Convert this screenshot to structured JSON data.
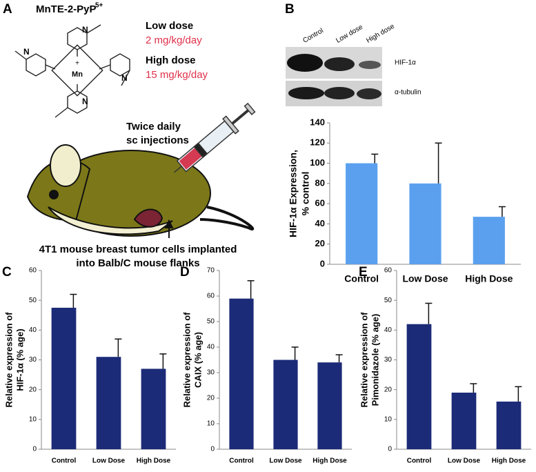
{
  "panel_labels": [
    "A",
    "B",
    "C",
    "D",
    "E"
  ],
  "panel_a": {
    "compound": "MnTE-2-PyP",
    "compound_charge": "5+",
    "metal": "Mn",
    "nitrogen": "N",
    "charge": "+",
    "low_dose_label": "Low dose",
    "low_dose_value": "2 mg/kg/day",
    "high_dose_label": "High dose",
    "high_dose_value": "15 mg/kg/day",
    "injection_text": [
      "Twice daily",
      "sc injections"
    ],
    "caption": [
      "4T1 mouse breast tumor cells implanted",
      "into Balb/C mouse flanks"
    ]
  },
  "blot": {
    "lanes": [
      "Control",
      "Low dose",
      "High dose"
    ],
    "rows": [
      "HIF-1α",
      "α-tubulin"
    ]
  },
  "chart_data": [
    {
      "type": "bar",
      "ylabel": [
        "HIF-1α Expression,",
        "% control"
      ],
      "categories": [
        "Control",
        "Low Dose",
        "High Dose"
      ],
      "values": [
        100,
        80,
        47
      ],
      "errors": [
        9,
        40,
        10
      ],
      "color": "#5aa0ef",
      "ylim": [
        0,
        140
      ],
      "yticks": [
        0,
        20,
        40,
        60,
        80,
        100,
        120,
        140
      ]
    },
    {
      "type": "bar",
      "ylabel": [
        "Relative expression of",
        "HIF-1α (% age)"
      ],
      "categories": [
        "Control",
        "Low Dose",
        "High Dose"
      ],
      "values": [
        47.5,
        31,
        27
      ],
      "errors": [
        4.5,
        6,
        5
      ],
      "color": "#1c2b78",
      "ylim": [
        0,
        60
      ],
      "yticks": [
        0,
        10,
        20,
        30,
        40,
        50,
        60
      ]
    },
    {
      "type": "bar",
      "ylabel": [
        "Relative expression of",
        "CAIX (% age)"
      ],
      "categories": [
        "Control",
        "Low Dose",
        "High Dose"
      ],
      "values": [
        59,
        35,
        34
      ],
      "errors": [
        7,
        5,
        3
      ],
      "color": "#1c2b78",
      "ylim": [
        0,
        70
      ],
      "yticks": [
        0,
        10,
        20,
        30,
        40,
        50,
        60,
        70
      ]
    },
    {
      "type": "bar",
      "ylabel": [
        "Relative expression of",
        "Pimonidazole (% age)"
      ],
      "categories": [
        "Control",
        "Low Dose",
        "High Dose"
      ],
      "values": [
        42,
        19,
        16
      ],
      "errors": [
        7,
        3,
        5
      ],
      "color": "#1c2b78",
      "ylim": [
        0,
        60
      ],
      "yticks": [
        0,
        10,
        20,
        30,
        40,
        50,
        60
      ]
    }
  ]
}
